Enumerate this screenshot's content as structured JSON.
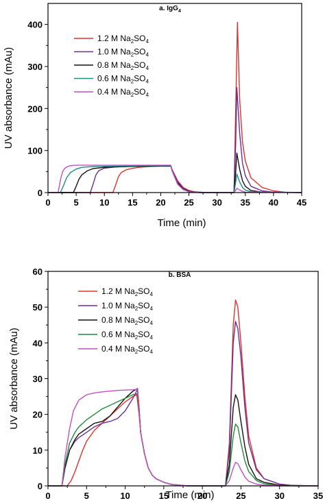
{
  "chart_data": [
    {
      "type": "line",
      "title": "a. IgG",
      "title_sub": "4",
      "xlabel": "Time (min)",
      "ylabel": "UV absorbance (mAu)",
      "xlim": [
        0,
        45
      ],
      "ylim": [
        0,
        450
      ],
      "xticks": [
        0,
        5,
        10,
        15,
        20,
        25,
        30,
        35,
        40,
        45
      ],
      "yticks": [
        0,
        100,
        200,
        300,
        400
      ],
      "legend_position": "top-left",
      "series": [
        {
          "name": "1.2 M Na2SO4",
          "legend_parts": [
            "1.2 M Na",
            "2",
            "SO",
            "4"
          ],
          "color": "#e0312c",
          "x": [
            0,
            11.5,
            12,
            12.5,
            13,
            14,
            16,
            18,
            20,
            21.8,
            22,
            23,
            24,
            25,
            26,
            28,
            30,
            32,
            33,
            33.3,
            33.6,
            34,
            34.5,
            35,
            36,
            38,
            40,
            42,
            45
          ],
          "y": [
            0,
            0,
            18,
            38,
            48,
            55,
            60,
            62,
            63,
            63,
            55,
            28,
            12,
            5,
            2,
            0,
            0,
            0,
            0,
            200,
            405,
            220,
            120,
            75,
            35,
            12,
            4,
            1,
            0
          ]
        },
        {
          "name": "1.0 M Na2SO4",
          "legend_parts": [
            "1.0 M Na",
            "2",
            "SO",
            "4"
          ],
          "color": "#6a2c91",
          "x": [
            0,
            7.5,
            8,
            8.5,
            9,
            10,
            12,
            15,
            18,
            21.8,
            22,
            23,
            24,
            25,
            26,
            28,
            30,
            33,
            33.3,
            33.5,
            34,
            34.5,
            35,
            36,
            38,
            40,
            45
          ],
          "y": [
            0,
            0,
            20,
            42,
            52,
            58,
            61,
            63,
            64,
            64,
            55,
            25,
            10,
            4,
            1,
            0,
            0,
            0,
            120,
            250,
            140,
            70,
            40,
            15,
            4,
            1,
            0
          ]
        },
        {
          "name": "0.8 M Na2SO4",
          "legend_parts": [
            "0.8 M Na",
            "2",
            "SO",
            "4"
          ],
          "color": "#111111",
          "x": [
            0,
            4.5,
            5,
            5.5,
            6,
            7,
            8,
            10,
            14,
            18,
            21.8,
            22,
            23,
            24,
            25,
            27,
            30,
            33,
            33.3,
            33.5,
            34,
            34.5,
            35,
            36,
            38,
            45
          ],
          "y": [
            0,
            0,
            15,
            32,
            42,
            52,
            57,
            60,
            62,
            63,
            63,
            52,
            22,
            8,
            3,
            0,
            0,
            0,
            50,
            94,
            55,
            28,
            15,
            5,
            1,
            0
          ]
        },
        {
          "name": "0.6 M Na2SO4",
          "legend_parts": [
            "0.6 M Na",
            "2",
            "SO",
            "4"
          ],
          "color": "#1a8a8a",
          "x": [
            0,
            2.2,
            2.8,
            3.3,
            4,
            5,
            6,
            8,
            12,
            18,
            21.8,
            22,
            23,
            24,
            25,
            27,
            30,
            33,
            33.3,
            33.5,
            34,
            34.5,
            35,
            36,
            45
          ],
          "y": [
            0,
            0,
            18,
            35,
            48,
            56,
            60,
            62,
            63,
            64,
            64,
            52,
            20,
            7,
            2,
            0,
            0,
            0,
            25,
            44,
            25,
            12,
            6,
            2,
            0
          ]
        },
        {
          "name": "0.4 M Na2SO4",
          "legend_parts": [
            "0.4 M Na",
            "2",
            "SO",
            "4"
          ],
          "color": "#c24fc2",
          "x": [
            0,
            1.8,
            2.2,
            2.6,
            3,
            3.5,
            4,
            5,
            8,
            12,
            18,
            21.8,
            22,
            23,
            24,
            25,
            27,
            30,
            33,
            33.3,
            33.5,
            34,
            34.5,
            35,
            45
          ],
          "y": [
            0,
            0,
            30,
            50,
            58,
            62,
            64,
            65,
            65,
            65,
            65,
            65,
            52,
            20,
            7,
            2,
            0,
            0,
            0,
            6,
            10,
            6,
            3,
            1,
            0
          ]
        }
      ]
    },
    {
      "type": "line",
      "title": "b. BSA",
      "xlabel": "Time (min)",
      "ylabel": "UV absorbance (mAu)",
      "xlim": [
        0,
        35
      ],
      "ylim": [
        0,
        60
      ],
      "xticks": [
        0,
        5,
        10,
        15,
        20,
        25,
        30,
        35
      ],
      "xtick_labels": [
        "0",
        "5",
        "10",
        "15",
        "20",
        "25",
        "30",
        "35"
      ],
      "yticks": [
        0,
        10,
        20,
        30,
        40,
        50,
        60
      ],
      "legend_position": "top-left",
      "series": [
        {
          "name": "1.2 M Na2SO4",
          "legend_parts": [
            "1.2 M Na",
            "2",
            "SO",
            "4"
          ],
          "color": "#e0312c",
          "x": [
            0,
            2.5,
            3,
            3.5,
            4,
            4.5,
            5,
            6,
            7,
            8,
            9,
            10,
            11,
            11.5,
            11.8,
            12,
            12.5,
            13,
            13.5,
            14,
            15,
            16,
            18,
            20,
            22,
            23,
            23.5,
            24,
            24.3,
            24.6,
            25,
            25.5,
            26,
            27,
            28,
            30,
            32,
            35
          ],
          "y": [
            0,
            0,
            1.5,
            4,
            7,
            10,
            12.5,
            15.5,
            17.5,
            19.5,
            21.5,
            23.5,
            25,
            25.5,
            20,
            15,
            9,
            5,
            3,
            2,
            1,
            0.4,
            0,
            0,
            0,
            0,
            12,
            45,
            52,
            50,
            40,
            25,
            14,
            5,
            2,
            0.5,
            0,
            0
          ]
        },
        {
          "name": "1.0 M Na2SO4",
          "legend_parts": [
            "1.0 M Na",
            "2",
            "SO",
            "4"
          ],
          "color": "#6a2c91",
          "x": [
            0,
            1.8,
            2.2,
            2.8,
            3.5,
            4,
            5,
            6,
            7,
            8,
            9,
            10,
            11,
            11.6,
            11.8,
            12,
            12.5,
            13,
            13.5,
            14,
            15,
            16,
            18,
            20,
            22,
            23,
            23.5,
            24,
            24.3,
            24.6,
            25,
            25.5,
            26,
            27,
            28,
            30,
            32,
            35
          ],
          "y": [
            0,
            0,
            5,
            10,
            12.5,
            13.5,
            15,
            16.5,
            17.5,
            18,
            18.8,
            21,
            24.5,
            27,
            22,
            15,
            9,
            5,
            3,
            2,
            1,
            0.4,
            0,
            0,
            0,
            0,
            10,
            40,
            46,
            44,
            36,
            22,
            12,
            4.5,
            2,
            0.5,
            0,
            0
          ]
        },
        {
          "name": "0.8 M Na2SO4",
          "legend_parts": [
            "0.8 M Na",
            "2",
            "SO",
            "4"
          ],
          "color": "#111111",
          "x": [
            0,
            1.8,
            2.2,
            2.8,
            3.5,
            4,
            5,
            6,
            7,
            8,
            9,
            10,
            11,
            11.6,
            11.8,
            12,
            12.5,
            13,
            13.5,
            14,
            15,
            16,
            18,
            20,
            22,
            23,
            23.5,
            24,
            24.3,
            24.6,
            25,
            25.5,
            26,
            27,
            28,
            30,
            35
          ],
          "y": [
            0,
            0,
            5,
            10,
            13,
            14.5,
            16,
            17.5,
            18,
            19.5,
            22,
            24.5,
            26.5,
            27.2,
            22,
            15,
            9,
            5,
            3,
            2,
            1,
            0.4,
            0,
            0,
            0,
            0,
            6,
            22,
            25.5,
            24,
            18,
            11,
            6,
            2,
            1,
            0.2,
            0
          ]
        },
        {
          "name": "0.6 M Na2SO4",
          "legend_parts": [
            "0.6 M Na",
            "2",
            "SO",
            "4"
          ],
          "color": "#1f8a3a",
          "x": [
            0,
            1.8,
            2.2,
            2.8,
            3.5,
            4,
            5,
            6,
            7,
            8,
            9,
            10,
            11,
            11.6,
            11.8,
            12,
            12.5,
            13,
            13.5,
            14,
            15,
            16,
            18,
            20,
            22,
            23,
            23.5,
            24,
            24.3,
            24.6,
            25,
            25.5,
            26,
            27,
            28,
            30,
            35
          ],
          "y": [
            0,
            0,
            6,
            12,
            15,
            16.5,
            18.5,
            20,
            21.5,
            22.5,
            23.5,
            24.5,
            25.5,
            25.8,
            21,
            15,
            9,
            5,
            3,
            2,
            1,
            0.4,
            0,
            0,
            0,
            0,
            4,
            14,
            17.3,
            16.5,
            12,
            7,
            4,
            1.5,
            0.6,
            0.1,
            0
          ]
        },
        {
          "name": "0.4 M Na2SO4",
          "legend_parts": [
            "0.4 M Na",
            "2",
            "SO",
            "4"
          ],
          "color": "#c24fc2",
          "x": [
            0,
            1.8,
            2.2,
            2.8,
            3.3,
            4,
            5,
            6,
            7,
            8,
            9,
            10,
            11,
            11.6,
            11.8,
            12,
            12.5,
            13,
            13.5,
            14,
            15,
            16,
            18,
            20,
            22,
            23,
            23.5,
            24,
            24.3,
            24.6,
            25,
            25.5,
            26,
            27,
            28,
            30,
            35
          ],
          "y": [
            0,
            0,
            8,
            16,
            21,
            24,
            25.5,
            26,
            26.3,
            26.5,
            26.7,
            26.8,
            26.9,
            27,
            22,
            15,
            9,
            5,
            3,
            2,
            1,
            0.4,
            0,
            0,
            0,
            0,
            1.5,
            5,
            6.6,
            6.2,
            4.5,
            2.5,
            1.3,
            0.5,
            0.2,
            0,
            0
          ]
        }
      ]
    }
  ]
}
